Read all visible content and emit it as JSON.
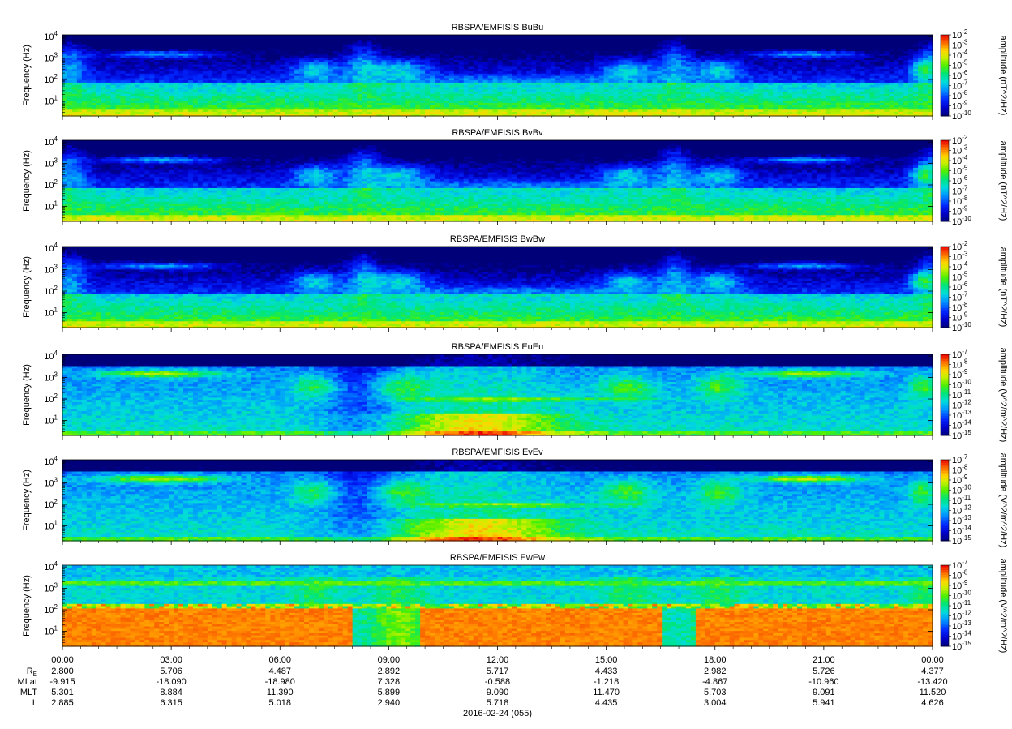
{
  "chart_data": [
    {
      "type": "heatmap",
      "title": "RBSPA/EMFISIS  BuBu",
      "ylabel": "Frequency (Hz)",
      "ylim": [
        2,
        12000
      ],
      "yscale": "log",
      "yticks": [
        "10",
        "10",
        "10",
        "10"
      ],
      "ytick_exps": [
        "1",
        "2",
        "3",
        "4"
      ],
      "colorbar": {
        "label": "amplitude (nT^2/Hz)",
        "base": "10",
        "exponents": [
          "-2",
          "-3",
          "-4",
          "-5",
          "-6",
          "-7",
          "-8",
          "-9",
          "-10"
        ],
        "range": [
          1e-10,
          0.01
        ],
        "scale": "log",
        "colormap": "rainbow"
      }
    },
    {
      "type": "heatmap",
      "title": "RBSPA/EMFISIS  BvBv",
      "ylabel": "Frequency (Hz)",
      "ylim": [
        2,
        12000
      ],
      "yscale": "log",
      "yticks": [
        "10",
        "10",
        "10",
        "10"
      ],
      "ytick_exps": [
        "1",
        "2",
        "3",
        "4"
      ],
      "colorbar": {
        "label": "amplitude (nT^2/Hz)",
        "base": "10",
        "exponents": [
          "-2",
          "-3",
          "-4",
          "-5",
          "-6",
          "-7",
          "-8",
          "-9",
          "-10"
        ],
        "range": [
          1e-10,
          0.01
        ],
        "scale": "log",
        "colormap": "rainbow"
      }
    },
    {
      "type": "heatmap",
      "title": "RBSPA/EMFISIS  BwBw",
      "ylabel": "Frequency (Hz)",
      "ylim": [
        2,
        12000
      ],
      "yscale": "log",
      "yticks": [
        "10",
        "10",
        "10",
        "10"
      ],
      "ytick_exps": [
        "1",
        "2",
        "3",
        "4"
      ],
      "colorbar": {
        "label": "amplitude (nT^2/Hz)",
        "base": "10",
        "exponents": [
          "-2",
          "-3",
          "-4",
          "-5",
          "-6",
          "-7",
          "-8",
          "-9",
          "-10"
        ],
        "range": [
          1e-10,
          0.01
        ],
        "scale": "log",
        "colormap": "rainbow"
      }
    },
    {
      "type": "heatmap",
      "title": "RBSPA/EMFISIS  EuEu",
      "ylabel": "Frequency (Hz)",
      "ylim": [
        2,
        12000
      ],
      "yscale": "log",
      "yticks": [
        "10",
        "10",
        "10",
        "10"
      ],
      "ytick_exps": [
        "1",
        "2",
        "3",
        "4"
      ],
      "colorbar": {
        "label": "amplitude (V^2/m^2/Hz)",
        "base": "10",
        "exponents": [
          "-7",
          "-8",
          "-9",
          "-10",
          "-11",
          "-12",
          "-13",
          "-14",
          "-15"
        ],
        "range": [
          1e-15,
          1e-07
        ],
        "scale": "log",
        "colormap": "rainbow"
      }
    },
    {
      "type": "heatmap",
      "title": "RBSPA/EMFISIS  EvEv",
      "ylabel": "Frequency (Hz)",
      "ylim": [
        2,
        12000
      ],
      "yscale": "log",
      "yticks": [
        "10",
        "10",
        "10",
        "10"
      ],
      "ytick_exps": [
        "1",
        "2",
        "3",
        "4"
      ],
      "colorbar": {
        "label": "amplitude (V^2/m^2/Hz)",
        "base": "10",
        "exponents": [
          "-7",
          "-8",
          "-9",
          "-10",
          "-11",
          "-12",
          "-13",
          "-14",
          "-15"
        ],
        "range": [
          1e-15,
          1e-07
        ],
        "scale": "log",
        "colormap": "rainbow"
      }
    },
    {
      "type": "heatmap",
      "title": "RBSPA/EMFISIS  EwEw",
      "ylabel": "Frequency (Hz)",
      "ylim": [
        2,
        12000
      ],
      "yscale": "log",
      "yticks": [
        "10",
        "10",
        "10",
        "10"
      ],
      "ytick_exps": [
        "1",
        "2",
        "3",
        "4"
      ],
      "colorbar": {
        "label": "amplitude (V^2/m^2/Hz)",
        "base": "10",
        "exponents": [
          "-7",
          "-8",
          "-9",
          "-10",
          "-11",
          "-12",
          "-13",
          "-14",
          "-15"
        ],
        "range": [
          1e-15,
          1e-07
        ],
        "scale": "log",
        "colormap": "rainbow"
      }
    }
  ],
  "x_axis": {
    "ticks": [
      "00:00",
      "03:00",
      "06:00",
      "09:00",
      "12:00",
      "15:00",
      "18:00",
      "21:00",
      "00:00"
    ],
    "xlim_hours": [
      0,
      24
    ],
    "date_label": "2016-02-24 (055)"
  },
  "ephemeris": {
    "rows": [
      {
        "label": "R",
        "sub": "E",
        "values": [
          "2.800",
          "5.706",
          "4.487",
          "2.892",
          "5.717",
          "4.433",
          "2.982",
          "5.726",
          "4.377"
        ]
      },
      {
        "label": "MLat",
        "sub": "",
        "values": [
          "-9.915",
          "-18.090",
          "-18.980",
          "7.328",
          "-0.588",
          "-1.218",
          "-4.867",
          "-10.960",
          "-13.420"
        ]
      },
      {
        "label": "MLT",
        "sub": "",
        "values": [
          "5.301",
          "8.884",
          "11.390",
          "5.899",
          "9.090",
          "11.470",
          "5.703",
          "9.091",
          "11.520"
        ]
      },
      {
        "label": "L",
        "sub": "",
        "values": [
          "2.885",
          "6.315",
          "5.018",
          "2.940",
          "5.718",
          "4.435",
          "3.004",
          "5.941",
          "4.626"
        ]
      }
    ]
  }
}
